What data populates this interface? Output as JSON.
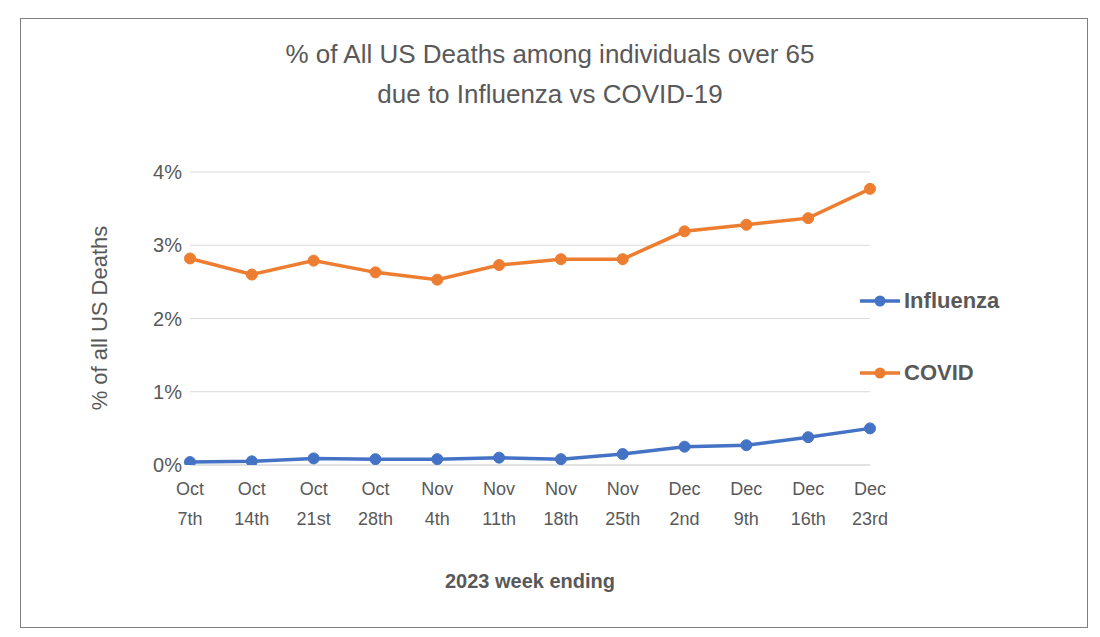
{
  "chart_data": {
    "type": "line",
    "title": "% of All US Deaths among individuals over 65 due to Influenza vs COVID-19",
    "x_label": "2023 week ending",
    "y_label": "% of all US Deaths",
    "categories": [
      "Oct 7th",
      "Oct 14th",
      "Oct 21st",
      "Oct 28th",
      "Nov 4th",
      "Nov 11th",
      "Nov 18th",
      "Nov 25th",
      "Dec 2nd",
      "Dec 9th",
      "Dec 16th",
      "Dec 23rd"
    ],
    "series": [
      {
        "name": "Influenza",
        "color": "#4472c4",
        "marker": "circle",
        "values": [
          0.04,
          0.05,
          0.09,
          0.08,
          0.08,
          0.1,
          0.08,
          0.15,
          0.25,
          0.27,
          0.38,
          0.5
        ]
      },
      {
        "name": "COVID",
        "color": "#ed7d31",
        "marker": "circle",
        "values": [
          2.82,
          2.6,
          2.79,
          2.63,
          2.53,
          2.73,
          2.81,
          2.81,
          3.19,
          3.28,
          3.37,
          3.77
        ]
      }
    ],
    "ylim": [
      0,
      4
    ],
    "yticks": [
      {
        "value": 0,
        "label": "0%"
      },
      {
        "value": 1,
        "label": "1%"
      },
      {
        "value": 2,
        "label": "2%"
      },
      {
        "value": 3,
        "label": "3%"
      },
      {
        "value": 4,
        "label": "4%"
      }
    ],
    "grid": true,
    "legend": "right"
  }
}
